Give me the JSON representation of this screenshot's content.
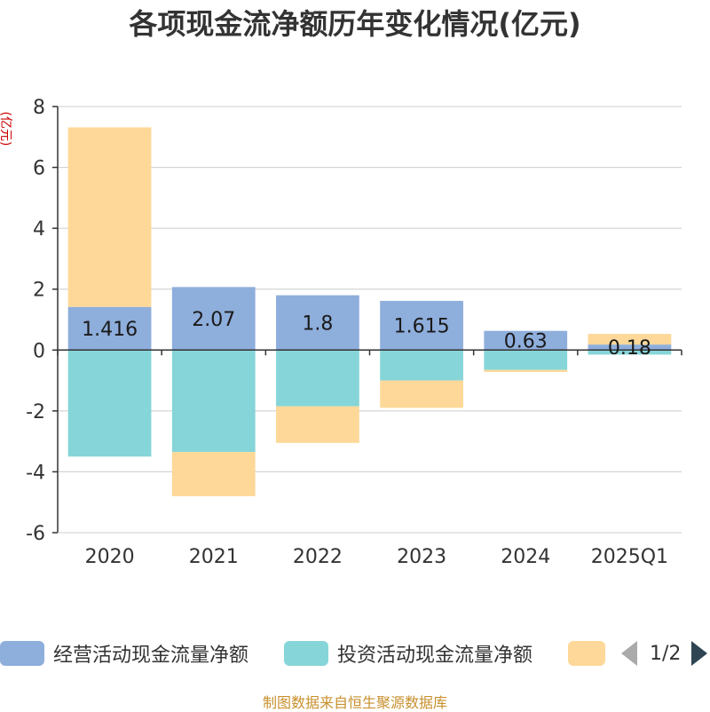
{
  "chart_data": {
    "type": "bar",
    "stacked": true,
    "title": "各项现金流净额历年变化情况(亿元)",
    "ylabel": "(亿元)",
    "ylim": [
      -6,
      8
    ],
    "yticks": [
      8,
      6,
      4,
      2,
      0,
      -2,
      -4,
      -6
    ],
    "grid": true,
    "categories": [
      "2020",
      "2021",
      "2022",
      "2023",
      "2024",
      "2025Q1"
    ],
    "series": [
      {
        "name": "经营活动现金流量净额",
        "color": "#8eaedc",
        "values": [
          1.416,
          2.07,
          1.8,
          1.615,
          0.63,
          0.18
        ],
        "labels": [
          "1.416",
          "2.07",
          "1.8",
          "1.615",
          "0.63",
          "0.18"
        ]
      },
      {
        "name": "投资活动现金流量净额",
        "color": "#86d5d8",
        "values": [
          -3.5,
          -3.35,
          -1.85,
          -1.0,
          -0.65,
          -0.15
        ]
      },
      {
        "color": "#fdd898",
        "values": [
          5.9,
          -1.45,
          -1.2,
          -0.9,
          -0.07,
          0.35
        ]
      }
    ],
    "legend_position": "bottom",
    "legend_page": "1/2"
  },
  "source": "制图数据来自恒生聚源数据库"
}
